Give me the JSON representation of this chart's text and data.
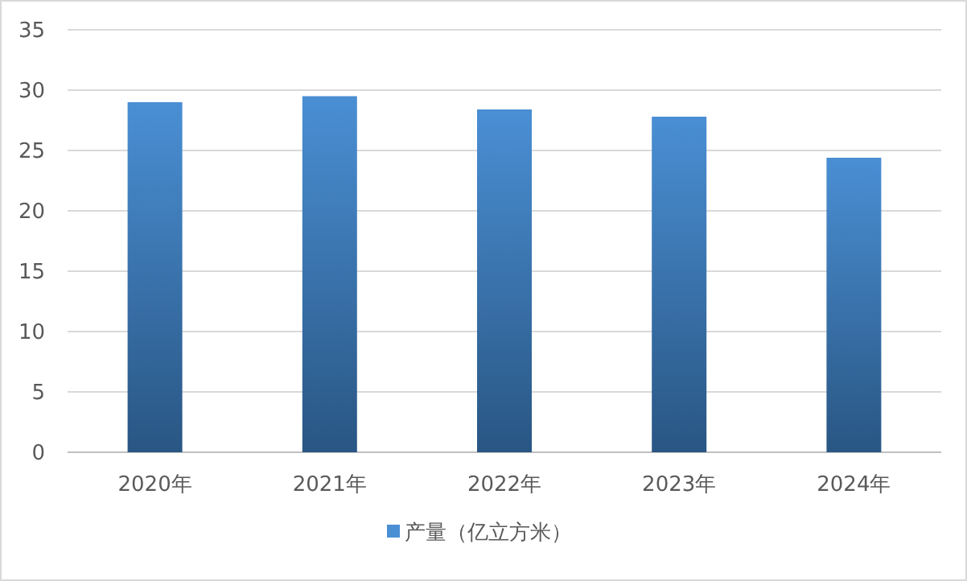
{
  "chart_data": {
    "type": "bar",
    "categories": [
      "2020年",
      "2021年",
      "2022年",
      "2023年",
      "2024年"
    ],
    "series": [
      {
        "name": "产量（亿立方米）",
        "color": "#4a8fd4",
        "values": [
          29,
          29.5,
          28.4,
          27.8,
          24.4
        ]
      }
    ],
    "ylim": [
      0,
      35
    ],
    "yticks": [
      0,
      5,
      10,
      15,
      20,
      25,
      30,
      35
    ],
    "grid": "y",
    "legend": "bottom"
  }
}
